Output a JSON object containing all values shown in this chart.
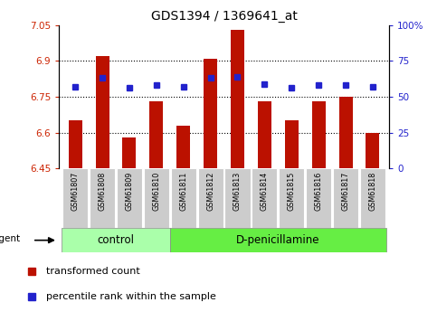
{
  "title": "GDS1394 / 1369641_at",
  "samples": [
    "GSM61807",
    "GSM61808",
    "GSM61809",
    "GSM61810",
    "GSM61811",
    "GSM61812",
    "GSM61813",
    "GSM61814",
    "GSM61815",
    "GSM61816",
    "GSM61817",
    "GSM61818"
  ],
  "transformed_count": [
    6.65,
    6.92,
    6.58,
    6.73,
    6.63,
    6.91,
    7.03,
    6.73,
    6.65,
    6.73,
    6.75,
    6.6
  ],
  "percentile_rank": [
    57,
    63,
    56,
    58,
    57,
    63,
    64,
    59,
    56,
    58,
    58,
    57
  ],
  "ylim_left": [
    6.45,
    7.05
  ],
  "ylim_right": [
    0,
    100
  ],
  "yticks_left": [
    6.45,
    6.6,
    6.75,
    6.9,
    7.05
  ],
  "yticks_right": [
    0,
    25,
    50,
    75,
    100
  ],
  "ytick_labels_left": [
    "6.45",
    "6.6",
    "6.75",
    "6.9",
    "7.05"
  ],
  "ytick_labels_right": [
    "0",
    "25",
    "50",
    "75",
    "100%"
  ],
  "hlines": [
    6.6,
    6.75,
    6.9
  ],
  "bar_color": "#bb1100",
  "dot_color": "#2222cc",
  "n_control": 4,
  "n_treatment": 8,
  "control_label": "control",
  "treatment_label": "D-penicillamine",
  "agent_label": "agent",
  "legend_bar_label": "transformed count",
  "legend_dot_label": "percentile rank within the sample",
  "tick_label_color_left": "#cc2200",
  "tick_label_color_right": "#2222cc",
  "bg_plot": "#ffffff",
  "bg_xtick": "#cccccc",
  "bg_control": "#aaffaa",
  "bg_treatment": "#66ee44",
  "bar_width": 0.5
}
